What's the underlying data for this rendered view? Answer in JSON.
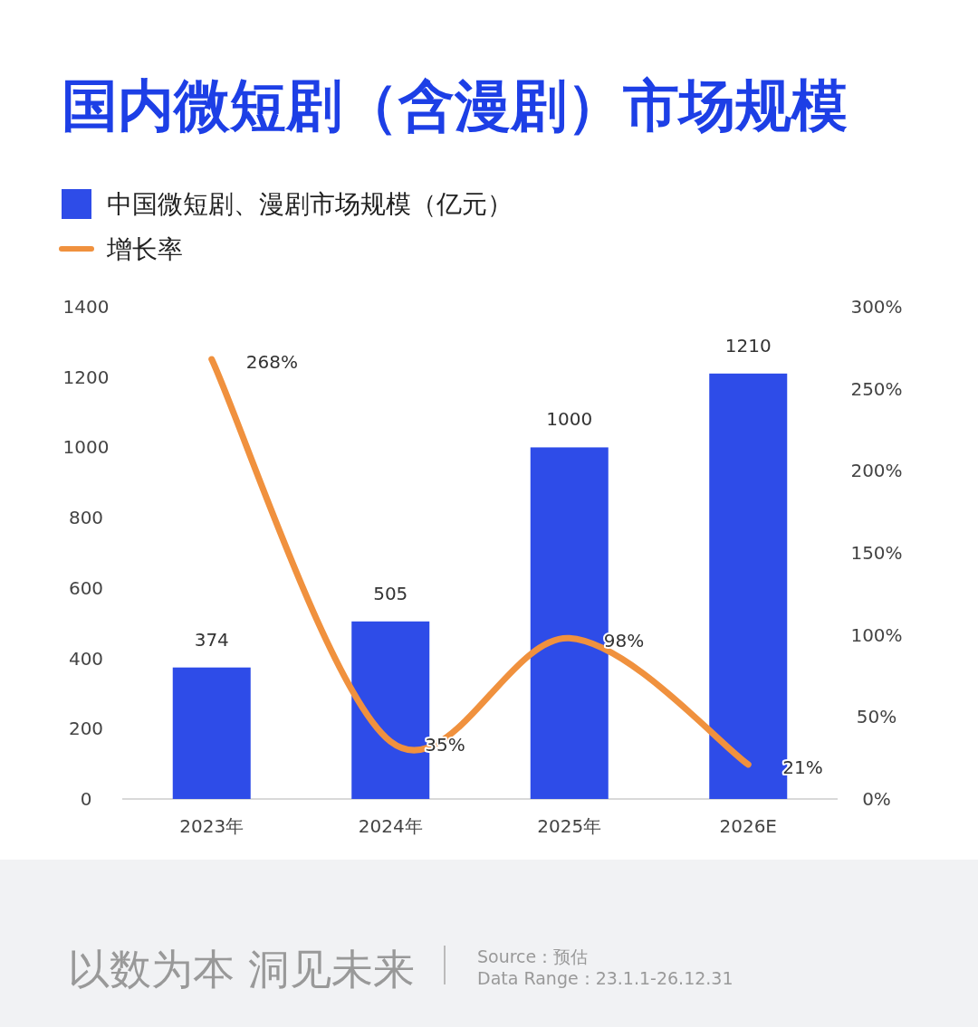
{
  "chart_data": {
    "type": "bar",
    "title": "国内微短剧（含漫剧）市场规模",
    "categories": [
      "2023年",
      "2024年",
      "2025年",
      "2026E"
    ],
    "series": [
      {
        "name": "中国微短剧、漫剧市场规模（亿元）",
        "type": "bar",
        "color": "#2e4ce8",
        "values": [
          374,
          505,
          1000,
          1210
        ],
        "value_labels": [
          "374",
          "505",
          "1000",
          "1210"
        ]
      },
      {
        "name": "增长率",
        "type": "line",
        "axis": "y2",
        "color": "#f0913e",
        "values": [
          268,
          35,
          98,
          21
        ],
        "value_labels": [
          "268%",
          "35%",
          "98%",
          "21%"
        ]
      }
    ],
    "ylim": [
      0,
      1400
    ],
    "yticks": [
      0,
      200,
      400,
      600,
      800,
      1000,
      1200,
      1400
    ],
    "y2lim": [
      0,
      300
    ],
    "y2ticks": [
      {
        "value": 0,
        "label": "0%"
      },
      {
        "value": 50,
        "label": "50%"
      },
      {
        "value": 100,
        "label": "100%"
      },
      {
        "value": 150,
        "label": "150%"
      },
      {
        "value": 200,
        "label": "200%"
      },
      {
        "value": 250,
        "label": "250%"
      },
      {
        "value": 300,
        "label": "300%"
      }
    ],
    "legend": "top left",
    "grid": false,
    "marker": "none",
    "line_style": "solid",
    "annotations": [
      "以数为本 洞见未来",
      "Source：预估",
      "Data Range：23.1.1-26.12.31"
    ]
  }
}
